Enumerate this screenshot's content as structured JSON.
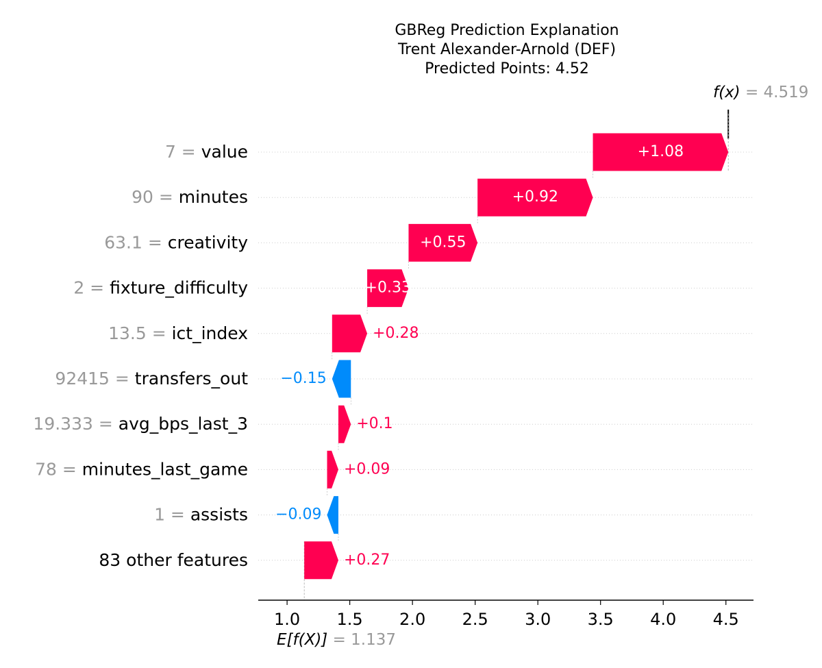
{
  "chart_data": {
    "type": "waterfall",
    "title_lines": [
      "GBReg Prediction Explanation",
      "Trent Alexander-Arnold (DEF)",
      "Predicted Points: 4.52"
    ],
    "base_value": 1.137,
    "base_label": "E[f(X)]",
    "base_value_text": "= 1.137",
    "output_value": 4.519,
    "output_label": "f(x)",
    "output_value_text": "= 4.519",
    "xlim": [
      0.77,
      4.72
    ],
    "xticks": [
      1.0,
      1.5,
      2.0,
      2.5,
      3.0,
      3.5,
      4.0,
      4.5
    ],
    "xtick_labels": [
      "1.0",
      "1.5",
      "2.0",
      "2.5",
      "3.0",
      "3.5",
      "4.0",
      "4.5"
    ],
    "features": [
      {
        "value_text": "7",
        "name": "value",
        "contribution": 1.08,
        "label": "+1.08",
        "start": 3.439,
        "end": 4.519
      },
      {
        "value_text": "90",
        "name": "minutes",
        "contribution": 0.92,
        "label": "+0.92",
        "start": 2.519,
        "end": 3.439
      },
      {
        "value_text": "63.1",
        "name": "creativity",
        "contribution": 0.55,
        "label": "+0.55",
        "start": 1.969,
        "end": 2.519
      },
      {
        "value_text": "2",
        "name": "fixture_difficulty",
        "contribution": 0.33,
        "label": "+0.33",
        "start": 1.639,
        "end": 1.969
      },
      {
        "value_text": "13.5",
        "name": "ict_index",
        "contribution": 0.28,
        "label": "+0.28",
        "start": 1.359,
        "end": 1.639
      },
      {
        "value_text": "92415",
        "name": "transfers_out",
        "contribution": -0.15,
        "label": "−0.15",
        "start": 1.509,
        "end": 1.359
      },
      {
        "value_text": "19.333",
        "name": "avg_bps_last_3",
        "contribution": 0.1,
        "label": "+0.1",
        "start": 1.409,
        "end": 1.509
      },
      {
        "value_text": "78",
        "name": "minutes_last_game",
        "contribution": 0.09,
        "label": "+0.09",
        "start": 1.319,
        "end": 1.409
      },
      {
        "value_text": "1",
        "name": "assists",
        "contribution": -0.09,
        "label": "−0.09",
        "start": 1.409,
        "end": 1.319
      },
      {
        "value_text": "",
        "name": "83 other features",
        "contribution": 0.27,
        "label": "+0.27",
        "start": 1.137,
        "end": 1.409
      }
    ]
  },
  "colors": {
    "positive": "#ff0051",
    "negative": "#008bfb",
    "feature_value": "#999999",
    "text": "#000000",
    "gridline": "#cccccc"
  }
}
